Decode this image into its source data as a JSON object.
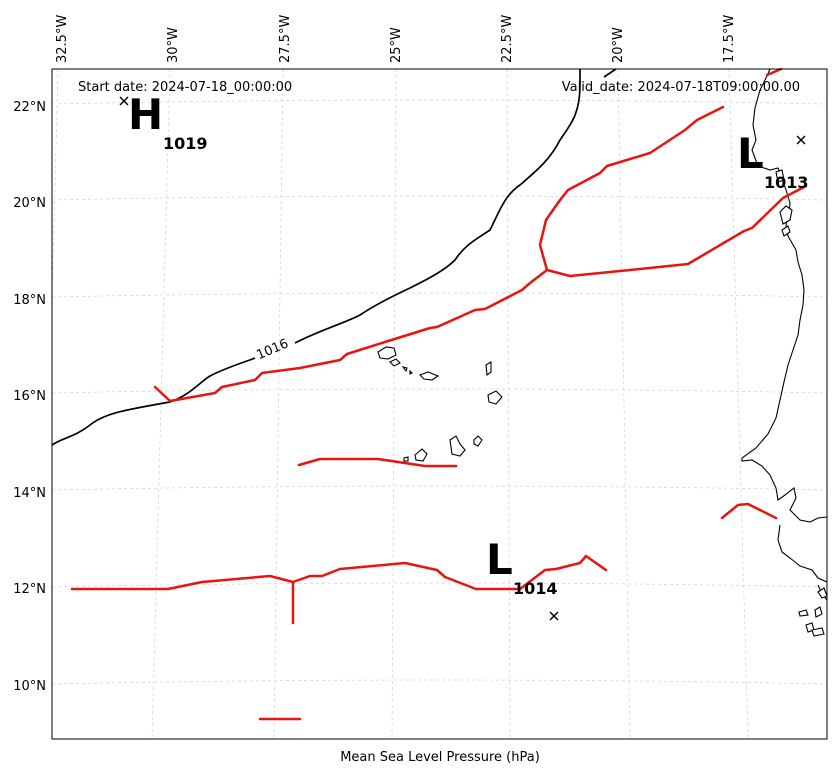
{
  "header": {
    "start_date": "Start date: 2024-07-18_00:00:00",
    "valid_date": "Valid_date: 2024-07-18T09:00:00.00"
  },
  "axes": {
    "lon_labels": [
      "32.5°W",
      "30°W",
      "27.5°W",
      "25°W",
      "22.5°W",
      "20°W",
      "17.5°W"
    ],
    "lat_labels": [
      "22°N",
      "20°N",
      "18°N",
      "16°N",
      "14°N",
      "12°N",
      "10°N"
    ]
  },
  "pressure_centers": [
    {
      "type": "H",
      "value": "1019"
    },
    {
      "type": "L",
      "value": "1013"
    },
    {
      "type": "L",
      "value": "1014"
    }
  ],
  "isobars": [
    {
      "label": "1016"
    }
  ],
  "colors": {
    "trough": "#e8140f",
    "isobar": "#000000",
    "grid": "#cfcfcf"
  },
  "caption": "Mean Sea Level Pressure (hPa)"
}
